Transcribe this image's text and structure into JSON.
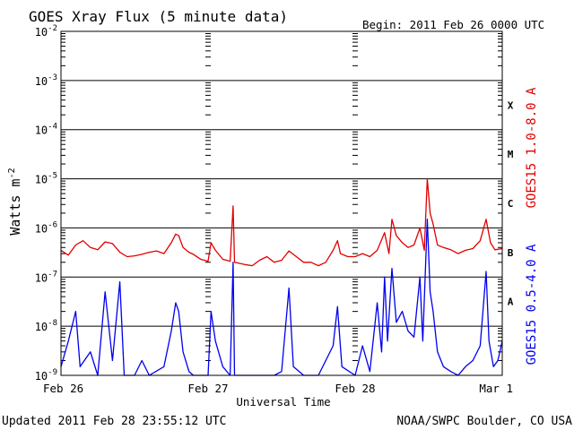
{
  "chart_data": {
    "type": "line",
    "title": "GOES Xray Flux (5 minute data)",
    "begin_label": "Begin:  2011 Feb 26 0000 UTC",
    "ylabel": "Watts m",
    "ylabel_superscript": "-2",
    "xlabel": "Universal Time",
    "yscale": "log",
    "ylim": [
      1e-09,
      0.01
    ],
    "y_ticks": [
      {
        "base": "10",
        "exp": "-2"
      },
      {
        "base": "10",
        "exp": "-3"
      },
      {
        "base": "10",
        "exp": "-4"
      },
      {
        "base": "10",
        "exp": "-5"
      },
      {
        "base": "10",
        "exp": "-6"
      },
      {
        "base": "10",
        "exp": "-7"
      },
      {
        "base": "10",
        "exp": "-8"
      },
      {
        "base": "10",
        "exp": "-9"
      }
    ],
    "x_range_days": [
      0,
      3
    ],
    "x_ticks": [
      "Feb 26",
      "Feb 27",
      "Feb 28",
      "Mar 1"
    ],
    "flare_classes": [
      "X",
      "M",
      "C",
      "B",
      "A"
    ],
    "series": [
      {
        "name": "GOES15 1.0-8.0 A",
        "color": "#e00000",
        "points": [
          [
            0.0,
            3.5e-07
          ],
          [
            0.05,
            2.8e-07
          ],
          [
            0.1,
            4.5e-07
          ],
          [
            0.15,
            5.5e-07
          ],
          [
            0.2,
            4e-07
          ],
          [
            0.25,
            3.6e-07
          ],
          [
            0.3,
            5.2e-07
          ],
          [
            0.35,
            4.8e-07
          ],
          [
            0.4,
            3.2e-07
          ],
          [
            0.45,
            2.6e-07
          ],
          [
            0.5,
            2.7e-07
          ],
          [
            0.55,
            2.9e-07
          ],
          [
            0.6,
            3.2e-07
          ],
          [
            0.65,
            3.4e-07
          ],
          [
            0.7,
            3e-07
          ],
          [
            0.75,
            5e-07
          ],
          [
            0.78,
            7.5e-07
          ],
          [
            0.8,
            7e-07
          ],
          [
            0.83,
            4e-07
          ],
          [
            0.87,
            3.2e-07
          ],
          [
            0.9,
            2.9e-07
          ],
          [
            0.95,
            2.3e-07
          ],
          [
            1.0,
            2.1e-07
          ],
          [
            1.02,
            5e-07
          ],
          [
            1.05,
            3.5e-07
          ],
          [
            1.1,
            2.3e-07
          ],
          [
            1.15,
            2.1e-07
          ],
          [
            1.17,
            2.8e-06
          ],
          [
            1.18,
            2e-07
          ],
          [
            1.25,
            1.8e-07
          ],
          [
            1.3,
            1.7e-07
          ],
          [
            1.35,
            2.2e-07
          ],
          [
            1.4,
            2.6e-07
          ],
          [
            1.45,
            2e-07
          ],
          [
            1.5,
            2.2e-07
          ],
          [
            1.55,
            3.4e-07
          ],
          [
            1.6,
            2.6e-07
          ],
          [
            1.65,
            2e-07
          ],
          [
            1.7,
            2e-07
          ],
          [
            1.75,
            1.7e-07
          ],
          [
            1.8,
            2e-07
          ],
          [
            1.85,
            3.5e-07
          ],
          [
            1.88,
            5.5e-07
          ],
          [
            1.9,
            3e-07
          ],
          [
            1.95,
            2.6e-07
          ],
          [
            2.0,
            2.6e-07
          ],
          [
            2.05,
            3e-07
          ],
          [
            2.1,
            2.6e-07
          ],
          [
            2.15,
            3.5e-07
          ],
          [
            2.2,
            8e-07
          ],
          [
            2.23,
            3e-07
          ],
          [
            2.25,
            1.5e-06
          ],
          [
            2.28,
            7e-07
          ],
          [
            2.32,
            5e-07
          ],
          [
            2.36,
            4e-07
          ],
          [
            2.4,
            4.5e-07
          ],
          [
            2.44,
            1e-06
          ],
          [
            2.47,
            3.5e-07
          ],
          [
            2.49,
            1e-05
          ],
          [
            2.51,
            2e-06
          ],
          [
            2.53,
            1.2e-06
          ],
          [
            2.56,
            4.5e-07
          ],
          [
            2.6,
            4e-07
          ],
          [
            2.65,
            3.6e-07
          ],
          [
            2.7,
            3e-07
          ],
          [
            2.75,
            3.5e-07
          ],
          [
            2.8,
            3.8e-07
          ],
          [
            2.85,
            5.5e-07
          ],
          [
            2.89,
            1.5e-06
          ],
          [
            2.92,
            5e-07
          ],
          [
            2.95,
            3.6e-07
          ],
          [
            3.0,
            3.8e-07
          ]
        ]
      },
      {
        "name": "GOES15 0.5-4.0 A",
        "color": "#0000ee",
        "points": [
          [
            0.0,
            1.5e-09
          ],
          [
            0.05,
            5e-09
          ],
          [
            0.1,
            2e-08
          ],
          [
            0.13,
            1.5e-09
          ],
          [
            0.2,
            3e-09
          ],
          [
            0.25,
            1e-09
          ],
          [
            0.3,
            5e-08
          ],
          [
            0.35,
            2e-09
          ],
          [
            0.4,
            8e-08
          ],
          [
            0.43,
            1e-09
          ],
          [
            0.5,
            1e-09
          ],
          [
            0.55,
            2e-09
          ],
          [
            0.6,
            1e-09
          ],
          [
            0.7,
            1.5e-09
          ],
          [
            0.75,
            8e-09
          ],
          [
            0.78,
            3e-08
          ],
          [
            0.8,
            2e-08
          ],
          [
            0.83,
            3e-09
          ],
          [
            0.87,
            1.2e-09
          ],
          [
            0.9,
            1e-09
          ],
          [
            1.0,
            1e-09
          ],
          [
            1.02,
            2e-08
          ],
          [
            1.05,
            5e-09
          ],
          [
            1.1,
            1.5e-09
          ],
          [
            1.15,
            1e-09
          ],
          [
            1.17,
            2e-07
          ],
          [
            1.18,
            1e-09
          ],
          [
            1.25,
            1e-09
          ],
          [
            1.35,
            1e-09
          ],
          [
            1.45,
            1e-09
          ],
          [
            1.5,
            1.2e-09
          ],
          [
            1.55,
            6e-08
          ],
          [
            1.58,
            1.5e-09
          ],
          [
            1.65,
            1e-09
          ],
          [
            1.75,
            1e-09
          ],
          [
            1.85,
            4e-09
          ],
          [
            1.88,
            2.5e-08
          ],
          [
            1.91,
            1.5e-09
          ],
          [
            2.0,
            1e-09
          ],
          [
            2.05,
            4e-09
          ],
          [
            2.1,
            1.2e-09
          ],
          [
            2.15,
            3e-08
          ],
          [
            2.18,
            3e-09
          ],
          [
            2.2,
            1e-07
          ],
          [
            2.22,
            5e-09
          ],
          [
            2.25,
            1.5e-07
          ],
          [
            2.28,
            1.2e-08
          ],
          [
            2.32,
            2e-08
          ],
          [
            2.36,
            8e-09
          ],
          [
            2.4,
            6e-09
          ],
          [
            2.44,
            1e-07
          ],
          [
            2.46,
            5e-09
          ],
          [
            2.49,
            1.5e-06
          ],
          [
            2.51,
            5e-08
          ],
          [
            2.53,
            2e-08
          ],
          [
            2.56,
            3e-09
          ],
          [
            2.6,
            1.5e-09
          ],
          [
            2.65,
            1.2e-09
          ],
          [
            2.7,
            1e-09
          ],
          [
            2.75,
            1.5e-09
          ],
          [
            2.8,
            2e-09
          ],
          [
            2.85,
            4e-09
          ],
          [
            2.89,
            1.3e-07
          ],
          [
            2.91,
            5e-09
          ],
          [
            2.94,
            1.5e-09
          ],
          [
            2.97,
            2e-09
          ],
          [
            3.0,
            5e-09
          ]
        ]
      }
    ],
    "grid": true
  },
  "footer": {
    "updated": "Updated 2011 Feb 28 23:55:12 UTC",
    "source": "NOAA/SWPC Boulder, CO USA"
  }
}
